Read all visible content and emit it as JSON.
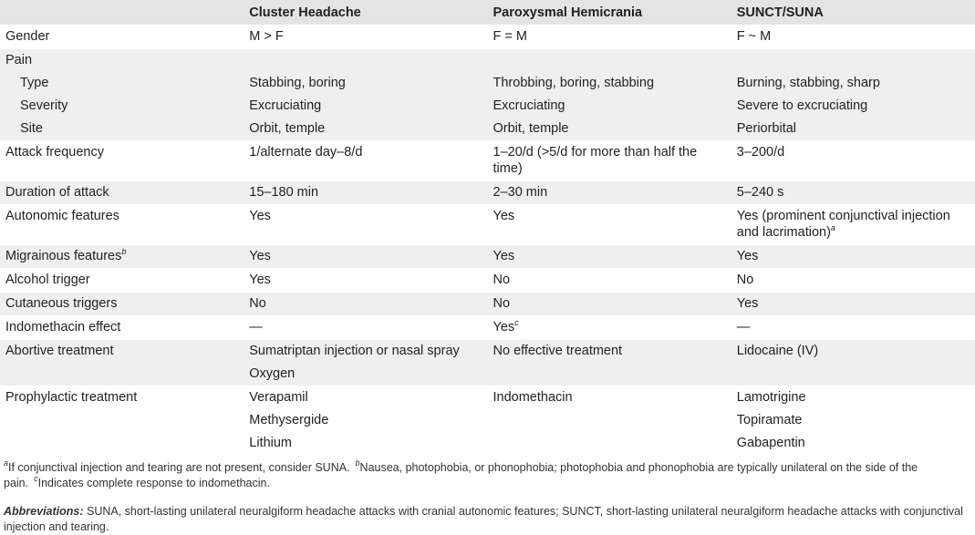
{
  "table": {
    "header": [
      "Cluster Headache",
      "Paroxysmal Hemicrania",
      "SUNCT/SUNA"
    ],
    "rows": [
      {
        "label": "Gender",
        "cells": [
          [
            "M > F"
          ],
          [
            "F = M"
          ],
          [
            "F ~ M"
          ]
        ]
      },
      {
        "label": "Pain",
        "subrows": [
          {
            "label": "Type",
            "cells": [
              [
                "Stabbing, boring"
              ],
              [
                "Throbbing, boring, stabbing"
              ],
              [
                "Burning, stabbing, sharp"
              ]
            ]
          },
          {
            "label": "Severity",
            "cells": [
              [
                "Excruciating"
              ],
              [
                "Excruciating"
              ],
              [
                "Severe to excruciating"
              ]
            ]
          },
          {
            "label": "Site",
            "cells": [
              [
                "Orbit, temple"
              ],
              [
                "Orbit, temple"
              ],
              [
                "Periorbital"
              ]
            ]
          }
        ]
      },
      {
        "label": "Attack frequency",
        "cells": [
          [
            "1/alternate day–8/d"
          ],
          [
            "1–20/d (>5/d for more than half the time)"
          ],
          [
            "3–200/d"
          ]
        ]
      },
      {
        "label": "Duration of attack",
        "cells": [
          [
            "15–180 min"
          ],
          [
            "2–30 min"
          ],
          [
            "5–240 s"
          ]
        ]
      },
      {
        "label": "Autonomic features",
        "cells": [
          [
            "Yes"
          ],
          [
            "Yes"
          ],
          [
            {
              "text": "Yes (prominent conjunctival injection and lacrimation)",
              "sup": "a"
            }
          ]
        ]
      },
      {
        "label": {
          "text": "Migrainous features",
          "sup": "b"
        },
        "cells": [
          [
            "Yes"
          ],
          [
            "Yes"
          ],
          [
            "Yes"
          ]
        ]
      },
      {
        "label": "Alcohol trigger",
        "cells": [
          [
            "Yes"
          ],
          [
            "No"
          ],
          [
            "No"
          ]
        ]
      },
      {
        "label": "Cutaneous triggers",
        "cells": [
          [
            "No"
          ],
          [
            "No"
          ],
          [
            "Yes"
          ]
        ]
      },
      {
        "label": "Indomethacin effect",
        "cells": [
          [
            "—"
          ],
          [
            {
              "text": "Yes",
              "sup": "c"
            }
          ],
          [
            "—"
          ]
        ]
      },
      {
        "label": "Abortive treatment",
        "cells": [
          [
            "Sumatriptan injection or nasal spray",
            "Oxygen"
          ],
          [
            "No effective treatment"
          ],
          [
            "Lidocaine (IV)"
          ]
        ]
      },
      {
        "label": "Prophylactic treatment",
        "cells": [
          [
            "Verapamil",
            "Methysergide",
            "Lithium"
          ],
          [
            "Indomethacin"
          ],
          [
            "Lamotrigine",
            "Topiramate",
            "Gabapentin"
          ]
        ]
      }
    ]
  },
  "footnotes": [
    {
      "mark": "a",
      "text": "If conjunctival injection and tearing are not present, consider SUNA."
    },
    {
      "mark": "b",
      "text": "Nausea, photophobia, or phonophobia; photophobia and phonophobia are typically unilateral on the side of the pain."
    },
    {
      "mark": "c",
      "text": "Indicates complete response to indomethacin."
    }
  ],
  "abbreviations": {
    "label": "Abbreviations:",
    "text": "SUNA, short-lasting unilateral neuralgiform headache attacks with cranial autonomic features; SUNCT, short-lasting unilateral neuralgiform headache attacks with conjunctival injection and tearing."
  }
}
